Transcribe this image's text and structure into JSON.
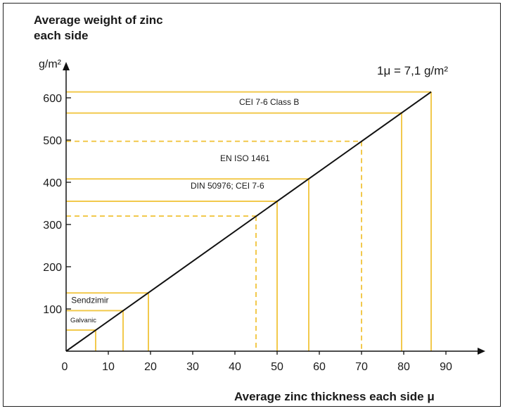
{
  "chart_data": {
    "type": "line",
    "title_lines": [
      "Average weight of zinc",
      "each side"
    ],
    "ylabel": "g/m²",
    "xlabel": "Average zinc thickness each side μ",
    "conversion_note": "1μ = 7,1 g/m²",
    "xlim": [
      0,
      90
    ],
    "ylim": [
      0,
      600
    ],
    "xticks": [
      0,
      10,
      20,
      30,
      40,
      50,
      60,
      70,
      80,
      90
    ],
    "xtick_labels": [
      "0",
      "10",
      "20",
      "30",
      "40",
      "50",
      "60",
      "70",
      "80",
      "90"
    ],
    "yticks": [
      100,
      200,
      300,
      400,
      500,
      600
    ],
    "ytick_labels": [
      "100",
      "200",
      "300",
      "400",
      "500",
      "600"
    ],
    "series": [
      {
        "x": [
          0,
          86.5
        ],
        "y": [
          0,
          614
        ]
      }
    ],
    "reference_lines": [
      {
        "x": 7,
        "y": 50,
        "style": "solid"
      },
      {
        "x": 13.5,
        "y": 96,
        "style": "solid"
      },
      {
        "x": 19.5,
        "y": 138,
        "style": "solid"
      },
      {
        "x": 45,
        "y": 320,
        "style": "dashed"
      },
      {
        "x": 50,
        "y": 355,
        "style": "solid"
      },
      {
        "x": 57.5,
        "y": 408,
        "style": "solid"
      },
      {
        "x": 70,
        "y": 497,
        "style": "dashed"
      },
      {
        "x": 79.5,
        "y": 564,
        "style": "solid"
      },
      {
        "x": 86.5,
        "y": 614,
        "style": "solid"
      }
    ],
    "annotations": [
      {
        "text": "CEI 7-6 Class B",
        "x": 41,
        "y": 583,
        "size": "normal"
      },
      {
        "text": "EN ISO 1461",
        "x": 36.5,
        "y": 450,
        "size": "normal"
      },
      {
        "text": "DIN 50976; CEI 7-6",
        "x": 29.5,
        "y": 385,
        "size": "normal"
      },
      {
        "text": "Sendzimir",
        "x": 1.2,
        "y": 114,
        "size": "normal"
      },
      {
        "text": "Galvanic",
        "x": 1.0,
        "y": 68,
        "size": "small"
      }
    ],
    "colors": {
      "reference": "#F2C94C",
      "line": "#111111",
      "axis": "#111111"
    }
  }
}
